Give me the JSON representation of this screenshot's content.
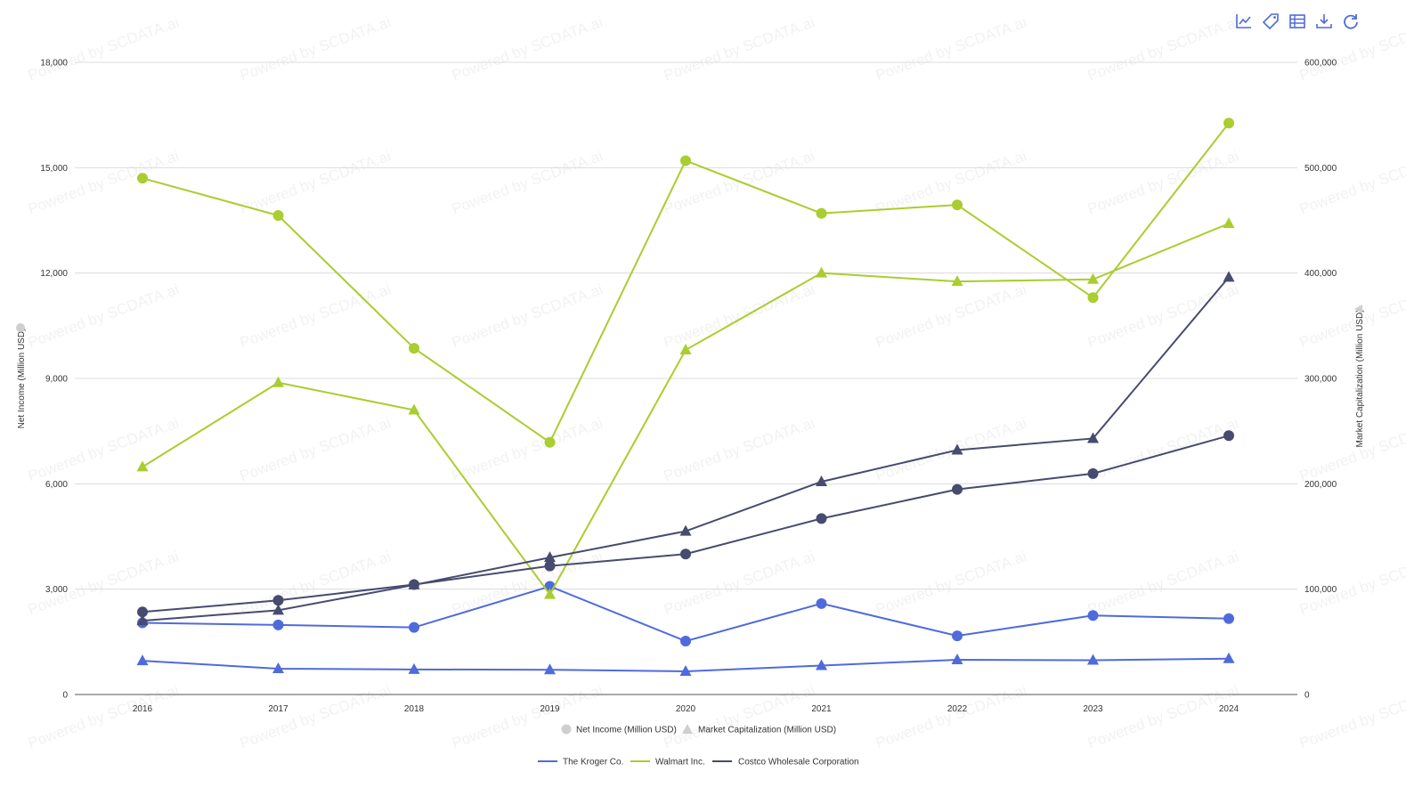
{
  "toolbar": [
    {
      "name": "line-chart-icon"
    },
    {
      "name": "tag-icon"
    },
    {
      "name": "table-icon"
    },
    {
      "name": "download-icon"
    },
    {
      "name": "refresh-icon"
    }
  ],
  "watermark_text": "Powered by SCDATA.ai",
  "chart_data": {
    "type": "line",
    "x": [
      "2016",
      "2017",
      "2018",
      "2019",
      "2020",
      "2021",
      "2022",
      "2023",
      "2024"
    ],
    "y_left": {
      "label": "Net Income (Million USD)",
      "lim": [
        0,
        18000
      ],
      "ticks": [
        "0",
        "3,000",
        "6,000",
        "9,000",
        "12,000",
        "15,000",
        "18,000"
      ],
      "tick_values": [
        0,
        3000,
        6000,
        9000,
        12000,
        15000,
        18000
      ]
    },
    "y_right": {
      "label": "Market Capitalization (Million USD)",
      "lim": [
        0,
        600000
      ],
      "ticks": [
        "0",
        "100,000",
        "200,000",
        "300,000",
        "400,000",
        "500,000",
        "600,000"
      ],
      "tick_values": [
        0,
        100000,
        200000,
        300000,
        400000,
        500000,
        600000
      ]
    },
    "grid": true,
    "metric_legend": [
      {
        "label": "Net Income (Million USD)",
        "marker": "circle"
      },
      {
        "label": "Market Capitalization (Million USD)",
        "marker": "triangle"
      }
    ],
    "company_legend": [
      {
        "label": "The Kroger Co.",
        "color": "#4f6bdb"
      },
      {
        "label": "Walmart Inc.",
        "color": "#aacd2f"
      },
      {
        "label": "Costco Wholesale Corporation",
        "color": "#474b6e"
      }
    ],
    "series": [
      {
        "company": "The Kroger Co.",
        "metric": "Net Income (Million USD)",
        "axis": "left",
        "marker": "circle",
        "color": "#4f6bdb",
        "values": [
          2040,
          1980,
          1910,
          3080,
          1520,
          2590,
          1670,
          2250,
          2160
        ]
      },
      {
        "company": "The Kroger Co.",
        "metric": "Market Capitalization (Million USD)",
        "axis": "right",
        "marker": "triangle",
        "color": "#4f6bdb",
        "values": [
          32000,
          24500,
          23800,
          23500,
          22000,
          27500,
          33000,
          32500,
          34000
        ]
      },
      {
        "company": "Walmart Inc.",
        "metric": "Net Income (Million USD)",
        "axis": "left",
        "marker": "circle",
        "color": "#aacd2f",
        "values": [
          14700,
          13640,
          9860,
          7180,
          15200,
          13700,
          13940,
          11300,
          16270
        ]
      },
      {
        "company": "Walmart Inc.",
        "metric": "Market Capitalization (Million USD)",
        "axis": "right",
        "marker": "triangle",
        "color": "#aacd2f",
        "values": [
          216000,
          296000,
          270000,
          95000,
          327000,
          400000,
          392000,
          394000,
          447000
        ]
      },
      {
        "company": "Costco Wholesale Corporation",
        "metric": "Net Income (Million USD)",
        "axis": "left",
        "marker": "circle",
        "color": "#474b6e",
        "values": [
          2350,
          2680,
          3130,
          3660,
          4000,
          5010,
          5840,
          6290,
          7370
        ]
      },
      {
        "company": "Costco Wholesale Corporation",
        "metric": "Market Capitalization (Million USD)",
        "axis": "right",
        "marker": "triangle",
        "color": "#474b6e",
        "values": [
          70000,
          80000,
          104000,
          130000,
          155000,
          202000,
          232000,
          243000,
          396000
        ]
      }
    ]
  }
}
